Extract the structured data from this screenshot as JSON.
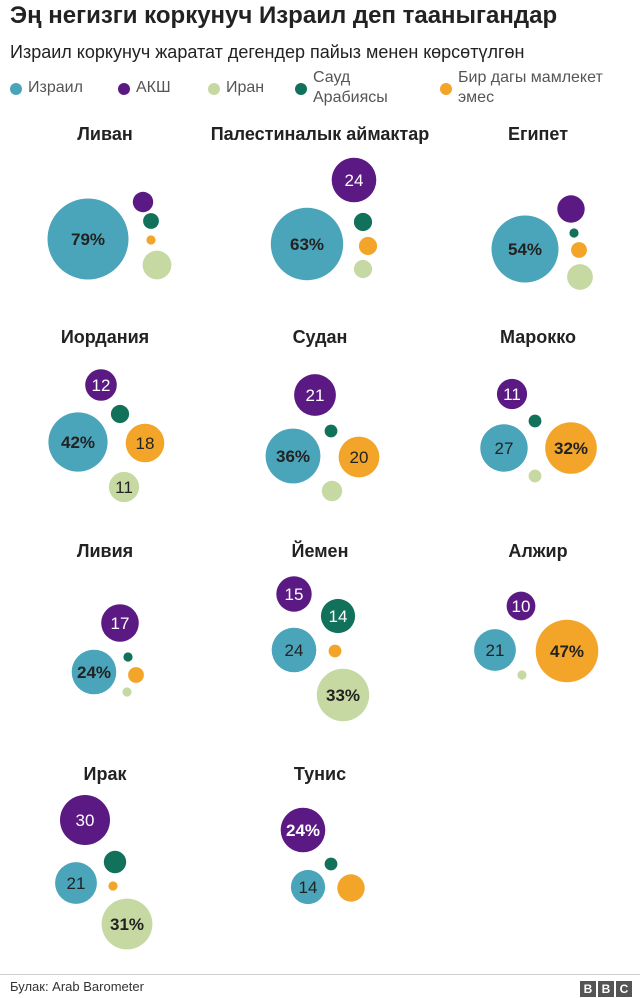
{
  "title": "Эң негизги коркунуч Израил деп тааныгандар",
  "subtitle": "Израил коркунуч жаратат дегендер пайыз менен көрсөтүлгөн",
  "legend": [
    {
      "label": "Израил",
      "color": "#4aa5bb"
    },
    {
      "label": "АКШ",
      "color": "#5b1a83"
    },
    {
      "label": "Иран",
      "color": "#c7d9a2"
    },
    {
      "label": "Сауд Арабиясы",
      "color": "#12715a"
    },
    {
      "label": "Бир дагы мамлекет эмес",
      "color": "#f3a52a"
    }
  ],
  "source": "Булак: Arab Barometer",
  "logo": "BBC",
  "chart_data": {
    "type": "bubble",
    "series": [
      "Израил",
      "АКШ",
      "Иран",
      "Сауд Арабиясы",
      "Бир дагы мамлекет эмес"
    ],
    "countries": [
      {
        "name": "Ливан",
        "values": {
          "Израил": 79,
          "АКШ": 5,
          "Иран": 10,
          "Сауд Арабиясы": 3,
          "Бир дагы мамлекет эмес": 1
        },
        "labels": {
          "Израил": "79%"
        }
      },
      {
        "name": "Палестиналык аймактар",
        "values": {
          "Израил": 63,
          "АКШ": 24,
          "Иран": 4,
          "Сауд Арабиясы": 4,
          "Бир дагы мамлекет эмес": 4
        },
        "labels": {
          "Израил": "63%",
          "АКШ": "24"
        }
      },
      {
        "name": "Египет",
        "values": {
          "Израил": 54,
          "АКШ": 9,
          "Иран": 8,
          "Сауд Арабиясы": 1,
          "Бир дагы мамлекет эмес": 3
        },
        "labels": {
          "Израил": "54%"
        }
      },
      {
        "name": "Иордания",
        "values": {
          "Израил": 42,
          "АКШ": 12,
          "Иран": 11,
          "Сауд Арабиясы": 4,
          "Бир дагы мамлекет эмес": 18
        },
        "labels": {
          "Израил": "42%",
          "АКШ": "12",
          "Иран": "11",
          "Бир дагы мамлекет эмес": "18"
        }
      },
      {
        "name": "Судан",
        "values": {
          "Израил": 36,
          "АКШ": 21,
          "Иран": 5,
          "Сауд Арабиясы": 2,
          "Бир дагы мамлекет эмес": 20
        },
        "labels": {
          "Израил": "36%",
          "АКШ": "21",
          "Бир дагы мамлекет эмес": "20"
        }
      },
      {
        "name": "Марокко",
        "values": {
          "Израил": 27,
          "АКШ": 11,
          "Иран": 2,
          "Сауд Арабиясы": 2,
          "Бир дагы мамлекет эмес": 32
        },
        "labels": {
          "Израил": "27",
          "АКШ": "11",
          "Бир дагы мамлекет эмес": "32%"
        }
      },
      {
        "name": "Ливия",
        "values": {
          "Израил": 24,
          "АКШ": 17,
          "Иран": 1,
          "Сауд Арабиясы": 1,
          "Бир дагы мамлекет эмес": 3
        },
        "labels": {
          "Израил": "24%",
          "АКШ": "17"
        }
      },
      {
        "name": "Йемен",
        "values": {
          "Израил": 24,
          "АКШ": 15,
          "Иран": 33,
          "Сауд Арабиясы": 14,
          "Бир дагы мамлекет эмес": 2
        },
        "labels": {
          "Израил": "24",
          "АКШ": "15",
          "Иран": "33%",
          "Сауд Арабиясы": "14"
        }
      },
      {
        "name": "Алжир",
        "values": {
          "Израил": 21,
          "АКШ": 10,
          "Иран": 1,
          "Сауд Арабиясы": 0,
          "Бир дагы мамлекет эмес": 47
        },
        "labels": {
          "Израил": "21",
          "АКШ": "10",
          "Бир дагы мамлекет эмес": "47%"
        }
      },
      {
        "name": "Ирак",
        "values": {
          "Израил": 21,
          "АКШ": 30,
          "Иран": 31,
          "Сауд Арабиясы": 6,
          "Бир дагы мамлекет эмес": 1
        },
        "labels": {
          "Израил": "21",
          "АКШ": "30",
          "Иран": "31%"
        }
      },
      {
        "name": "Тунис",
        "values": {
          "Израил": 14,
          "АКШ": 24,
          "Иран": 0,
          "Сауд Арабиясы": 2,
          "Бир дагы мамлекет эмес": 9
        },
        "labels": {
          "Израил": "14",
          "АКШ": "24%"
        }
      }
    ]
  }
}
